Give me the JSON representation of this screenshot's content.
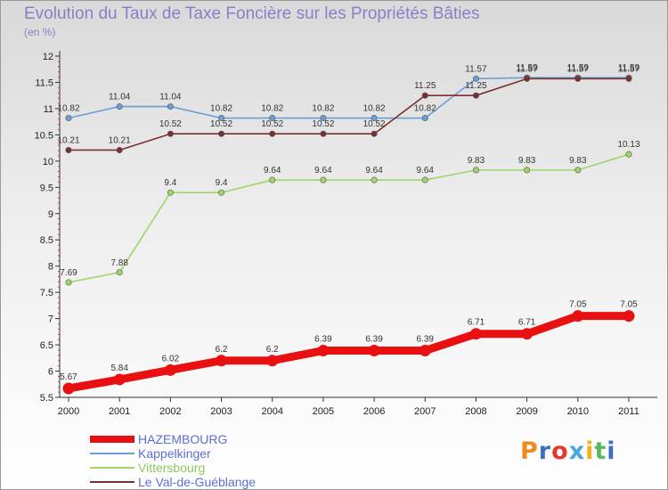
{
  "header": {
    "title": "Evolution du Taux de Taxe Foncière sur les Propriétés Bâties",
    "unit": "(en %)"
  },
  "logo": {
    "text": "Proxiti",
    "colors": [
      "#f08a1e",
      "#3a6fc4",
      "#e23a2a",
      "#4aa8d8",
      "#f2b01e",
      "#5cb85c",
      "#3a6fc4"
    ]
  },
  "chart_data": {
    "type": "line",
    "title": "Evolution du Taux de Taxe Foncière sur les Propriétés Bâties",
    "ylabel": "(en %)",
    "xlabel": "",
    "x": [
      "2000",
      "2001",
      "2002",
      "2003",
      "2004",
      "2005",
      "2006",
      "2007",
      "2008",
      "2009",
      "2010",
      "2011"
    ],
    "ylim": [
      5.5,
      12
    ],
    "yticks": [
      "5.5",
      "6",
      "6.5",
      "7",
      "7.5",
      "8",
      "8.5",
      "9",
      "9.5",
      "10",
      "10.5",
      "11",
      "11.5",
      "12"
    ],
    "grid": false,
    "legend_position": "bottom-left",
    "series": [
      {
        "name": "HAZEMBOURG",
        "color": "#e81010",
        "values": [
          5.67,
          5.84,
          6.02,
          6.2,
          6.2,
          6.39,
          6.39,
          6.39,
          6.71,
          6.71,
          7.05,
          7.05
        ],
        "labels": [
          "5.67",
          "5.84",
          "6.02",
          "6.2",
          "6.2",
          "6.39",
          "6.39",
          "6.39",
          "6.71",
          "6.71",
          "7.05",
          "7.05"
        ]
      },
      {
        "name": "Kappelkinger",
        "color": "#6a9fd4",
        "values": [
          10.82,
          11.04,
          11.04,
          10.82,
          10.82,
          10.82,
          10.82,
          10.82,
          11.57,
          11.59,
          11.59,
          11.59
        ],
        "labels": [
          "10.82",
          "11.04",
          "11.04",
          "10.82",
          "10.82",
          "10.82",
          "10.82",
          "10.82",
          "11.57",
          "11.59",
          "11.59",
          "11.59"
        ]
      },
      {
        "name": "Vittersbourg",
        "color": "#9fd66a",
        "values": [
          7.69,
          7.88,
          9.4,
          9.4,
          9.64,
          9.64,
          9.64,
          9.64,
          9.83,
          9.83,
          9.83,
          10.13
        ],
        "labels": [
          "7.69",
          "7.88",
          "9.4",
          "9.4",
          "9.64",
          "9.64",
          "9.64",
          "9.64",
          "9.83",
          "9.83",
          "9.83",
          "10.13"
        ]
      },
      {
        "name": "Le Val-de-Guéblange",
        "color": "#7a3030",
        "values": [
          10.21,
          10.21,
          10.52,
          10.52,
          10.52,
          10.52,
          10.52,
          11.25,
          11.25,
          11.57,
          11.57,
          11.57
        ],
        "labels": [
          "10.21",
          "10.21",
          "10.52",
          "10.52",
          "10.52",
          "10.52",
          "10.52",
          "11.25",
          "11.25",
          "11.57",
          "11.57",
          "11.57"
        ]
      }
    ]
  }
}
